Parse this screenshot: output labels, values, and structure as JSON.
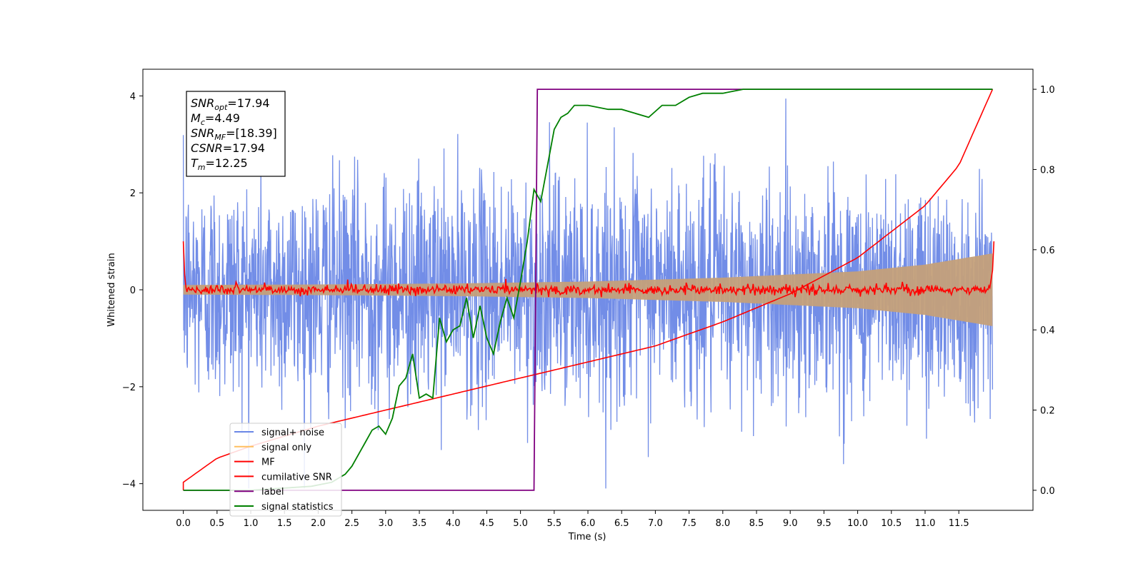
{
  "chart_data": {
    "type": "line",
    "xlabel": "Time (s)",
    "ylabel": "Whitened strain",
    "xlim": [
      -0.6,
      12.6
    ],
    "ylim": [
      -4.55,
      4.55
    ],
    "y2lim": [
      -0.05,
      1.05
    ],
    "x_ticks": [
      "0.0",
      "0.5",
      "1.0",
      "1.5",
      "2.0",
      "2.5",
      "3.0",
      "3.5",
      "4.0",
      "4.5",
      "5.0",
      "5.5",
      "6.0",
      "6.5",
      "7.0",
      "7.5",
      "8.0",
      "8.5",
      "9.0",
      "9.5",
      "10.0",
      "10.5",
      "11.0",
      "11.5"
    ],
    "y_ticks": [
      "4",
      "2",
      "0",
      "−2",
      "−4"
    ],
    "y2_ticks": [
      "1.0",
      "0.8",
      "0.6",
      "0.4",
      "0.2",
      "0.0"
    ],
    "legend_position": "lower-left",
    "annotation": {
      "lines": [
        {
          "base": "SNR",
          "sub": "opt",
          "value": "=17.94"
        },
        {
          "base": "M",
          "sub": "c",
          "value": "=4.49"
        },
        {
          "base": "SNR",
          "sub": "MF",
          "value": "=[18.39]"
        },
        {
          "base": "CSNR",
          "sub": "",
          "value": "=17.94"
        },
        {
          "base": "T",
          "sub": "m",
          "value": "=12.25"
        }
      ]
    },
    "series": [
      {
        "name": "signal+ noise",
        "axis": "left",
        "color": "#6a87e6",
        "description_values": {
          "x_range": [
            0,
            12
          ],
          "amplitude_typical": 1.4,
          "amplitude_peak": 4.1
        }
      },
      {
        "name": "signal only",
        "axis": "left",
        "color": "#ffbf60",
        "fill_envelope": {
          "x": [
            0,
            2,
            4,
            6,
            8,
            10,
            11,
            12
          ],
          "amp": [
            0.1,
            0.11,
            0.13,
            0.17,
            0.25,
            0.38,
            0.52,
            0.75
          ]
        }
      },
      {
        "name": "MF",
        "axis": "left",
        "color": "#ff0000",
        "values_note": "noise around 0",
        "x": [
          0,
          0.05,
          12,
          12.02
        ],
        "y": [
          1.0,
          0.05,
          0.05,
          1.0
        ]
      },
      {
        "name": "cumilative SNR",
        "axis": "right",
        "color": "#ff0000",
        "x": [
          0,
          0.5,
          1,
          2,
          3,
          4,
          5,
          6,
          7,
          8,
          9,
          10,
          11,
          11.5,
          12
        ],
        "y": [
          0.02,
          0.08,
          0.11,
          0.16,
          0.2,
          0.24,
          0.28,
          0.32,
          0.36,
          0.42,
          0.49,
          0.58,
          0.71,
          0.81,
          1.0
        ]
      },
      {
        "name": "label",
        "axis": "right",
        "color": "#800080",
        "x": [
          0,
          5.2,
          5.25,
          12
        ],
        "y": [
          0.0,
          0.0,
          1.0,
          1.0
        ]
      },
      {
        "name": "signal statistics",
        "axis": "right",
        "color": "#008000",
        "x": [
          0,
          1,
          1.9,
          2.2,
          2.4,
          2.5,
          2.7,
          2.8,
          2.9,
          3.0,
          3.1,
          3.2,
          3.3,
          3.4,
          3.5,
          3.6,
          3.7,
          3.8,
          3.9,
          4.0,
          4.1,
          4.2,
          4.3,
          4.4,
          4.5,
          4.6,
          4.7,
          4.8,
          4.9,
          5.0,
          5.1,
          5.2,
          5.3,
          5.4,
          5.5,
          5.6,
          5.7,
          5.8,
          6.0,
          6.3,
          6.5,
          6.7,
          6.9,
          7.1,
          7.3,
          7.5,
          7.7,
          8.0,
          8.3,
          8.6,
          9.0,
          10.0,
          11.0,
          12.0
        ],
        "y": [
          0.0,
          0.0,
          0.01,
          0.02,
          0.04,
          0.06,
          0.12,
          0.15,
          0.16,
          0.14,
          0.18,
          0.26,
          0.28,
          0.34,
          0.23,
          0.24,
          0.23,
          0.43,
          0.37,
          0.4,
          0.41,
          0.48,
          0.38,
          0.46,
          0.38,
          0.34,
          0.42,
          0.48,
          0.43,
          0.52,
          0.62,
          0.75,
          0.72,
          0.81,
          0.9,
          0.93,
          0.94,
          0.96,
          0.96,
          0.95,
          0.95,
          0.94,
          0.93,
          0.96,
          0.96,
          0.98,
          0.99,
          0.99,
          1.0,
          1.0,
          1.0,
          1.0,
          1.0,
          1.0
        ]
      }
    ]
  }
}
